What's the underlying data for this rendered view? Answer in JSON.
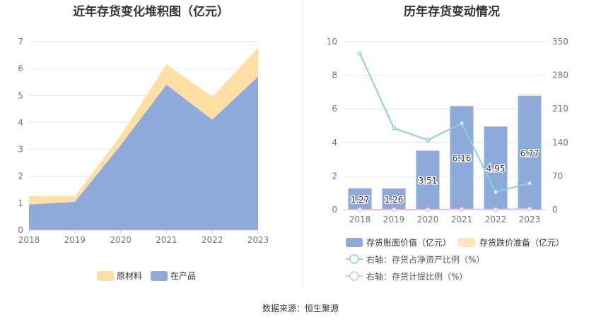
{
  "source_text": "数据来源：恒生聚源",
  "chart_data": [
    {
      "type": "area",
      "title": "近年存货变化堆积图（亿元）",
      "x": [
        "2018",
        "2019",
        "2020",
        "2021",
        "2022",
        "2023"
      ],
      "ylim": [
        0,
        7
      ],
      "yticks": [
        "0",
        "1",
        "2",
        "3",
        "4",
        "5",
        "6",
        "7"
      ],
      "stacked": true,
      "grid": true,
      "legend": "bottom",
      "series": [
        {
          "name": "在产品",
          "values": [
            0.95,
            1.05,
            3.15,
            5.4,
            4.1,
            5.7
          ],
          "color": "#8eaadb"
        },
        {
          "name": "原材料",
          "values": [
            0.32,
            0.21,
            0.36,
            0.76,
            0.85,
            1.07
          ],
          "color": "#ffdfa3"
        }
      ]
    },
    {
      "type": "bar",
      "title": "历年存货变动情况",
      "categories": [
        "2018",
        "2019",
        "2020",
        "2021",
        "2022",
        "2023"
      ],
      "ylim_left": [
        0,
        10
      ],
      "yticks_left": [
        "0",
        "2",
        "4",
        "6",
        "8",
        "10"
      ],
      "ylim_right": [
        0,
        350
      ],
      "yticks_right": [
        "0",
        "70",
        "140",
        "210",
        "280",
        "350"
      ],
      "legend": "bottom",
      "series": [
        {
          "name": "存货账面价值（亿元）",
          "axis": "left",
          "kind": "bar",
          "values": [
            1.27,
            1.26,
            3.51,
            6.16,
            4.95,
            6.77
          ],
          "labels": [
            "1.27",
            "1.26",
            "3.51",
            "6.16",
            "4.95",
            "6.77"
          ],
          "color": "#8eaadb"
        },
        {
          "name": "存货跌价准备（亿元）",
          "axis": "left",
          "kind": "bar-stack",
          "values": [
            0.0,
            0.0,
            0.0,
            0.05,
            0.02,
            0.12
          ],
          "color": "#ffe6b8"
        },
        {
          "name": "右轴：存货占净资产比例（%）",
          "axis": "right",
          "kind": "line",
          "values": [
            325,
            170,
            145,
            180,
            37,
            55
          ],
          "color": "#86d4d8"
        },
        {
          "name": "右轴：存货计提比例（%）",
          "axis": "right",
          "kind": "line",
          "values": [
            0.0,
            0.0,
            0.0,
            0.8,
            0.4,
            1.7
          ],
          "color": "#f2b8d6"
        }
      ]
    }
  ]
}
